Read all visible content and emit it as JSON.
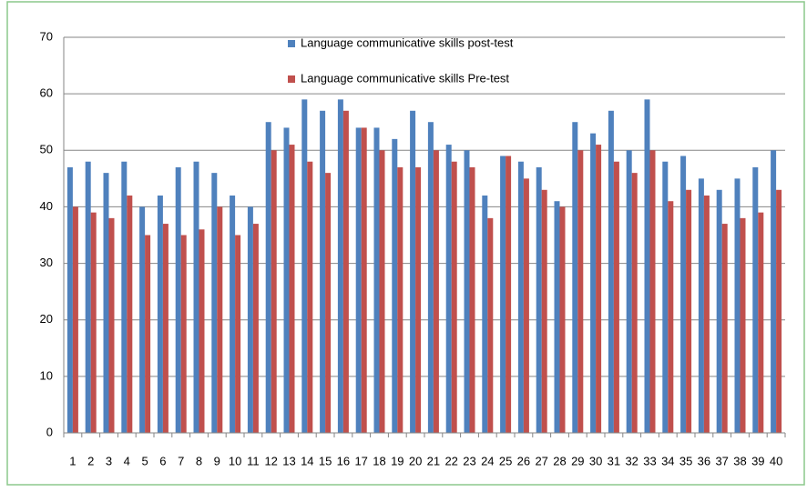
{
  "chart_data": {
    "type": "bar",
    "categories": [
      "1",
      "2",
      "3",
      "4",
      "5",
      "6",
      "7",
      "8",
      "9",
      "10",
      "11",
      "12",
      "13",
      "14",
      "15",
      "16",
      "17",
      "18",
      "19",
      "20",
      "21",
      "22",
      "23",
      "24",
      "25",
      "26",
      "27",
      "28",
      "29",
      "30",
      "31",
      "32",
      "33",
      "34",
      "35",
      "36",
      "37",
      "38",
      "39",
      "40"
    ],
    "series": [
      {
        "name": "Language communicative skills post-test",
        "color": "#4f81bd",
        "values": [
          47,
          48,
          46,
          48,
          40,
          42,
          47,
          48,
          46,
          42,
          40,
          55,
          54,
          59,
          57,
          59,
          54,
          54,
          52,
          57,
          55,
          51,
          50,
          42,
          49,
          48,
          47,
          41,
          55,
          53,
          57,
          50,
          59,
          48,
          49,
          45,
          43,
          45,
          47,
          50
        ]
      },
      {
        "name": "Language communicative skills Pre-test",
        "color": "#c0504d",
        "values": [
          40,
          39,
          38,
          42,
          35,
          37,
          35,
          36,
          40,
          35,
          37,
          50,
          51,
          48,
          46,
          57,
          54,
          50,
          47,
          47,
          50,
          48,
          47,
          38,
          49,
          45,
          43,
          40,
          50,
          51,
          48,
          46,
          50,
          41,
          43,
          42,
          37,
          38,
          39,
          43
        ]
      }
    ],
    "ylim": [
      0,
      70
    ],
    "yticks": [
      0,
      10,
      20,
      30,
      40,
      50,
      60,
      70
    ],
    "grid": true,
    "legend": "top"
  }
}
